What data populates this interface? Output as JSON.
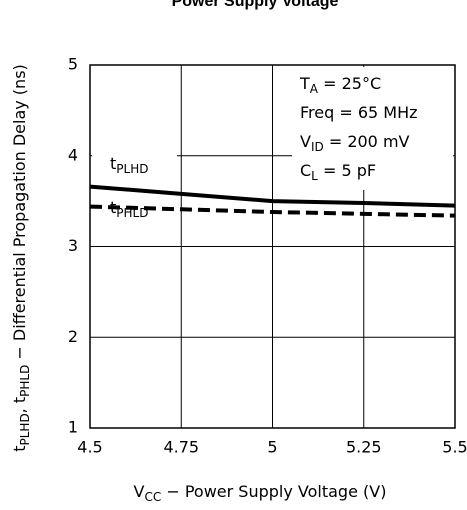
{
  "chart_data": {
    "type": "line",
    "title": "Power Supply Voltage",
    "x": [
      4.5,
      4.75,
      5,
      5.25,
      5.5
    ],
    "xlim": [
      4.5,
      5.5
    ],
    "xticks": [
      4.5,
      4.75,
      5,
      5.25,
      5.5
    ],
    "ylim": [
      1,
      5
    ],
    "yticks": [
      1,
      2,
      3,
      4,
      5
    ],
    "grid": true,
    "series": [
      {
        "name": "tPLHD",
        "color": "#000000",
        "dash": false,
        "values": [
          3.66,
          3.58,
          3.5,
          3.48,
          3.45
        ]
      },
      {
        "name": "tPHLD",
        "color": "#000000",
        "dash": true,
        "values": [
          3.44,
          3.41,
          3.38,
          3.36,
          3.34
        ]
      }
    ],
    "x_label": [
      {
        "text": "V"
      },
      {
        "text": "CC",
        "sub": true
      },
      {
        "text": " − Power Supply Voltage (V)"
      }
    ],
    "y_label": [
      {
        "text": "t"
      },
      {
        "text": "PLHD",
        "sub": true
      },
      {
        "text": ", t"
      },
      {
        "text": "PHLD",
        "sub": true
      },
      {
        "text": " − Differential Propagation Delay (ns)"
      }
    ],
    "conditions": [
      [
        {
          "text": "T"
        },
        {
          "text": "A",
          "sub": true
        },
        {
          "text": " = 25°C"
        }
      ],
      [
        {
          "text": "Freq = 65 MHz"
        }
      ],
      [
        {
          "text": "V"
        },
        {
          "text": "ID",
          "sub": true
        },
        {
          "text": " = 200 mV"
        }
      ],
      [
        {
          "text": "C"
        },
        {
          "text": "L",
          "sub": true
        },
        {
          "text": " = 5 pF"
        }
      ]
    ]
  }
}
